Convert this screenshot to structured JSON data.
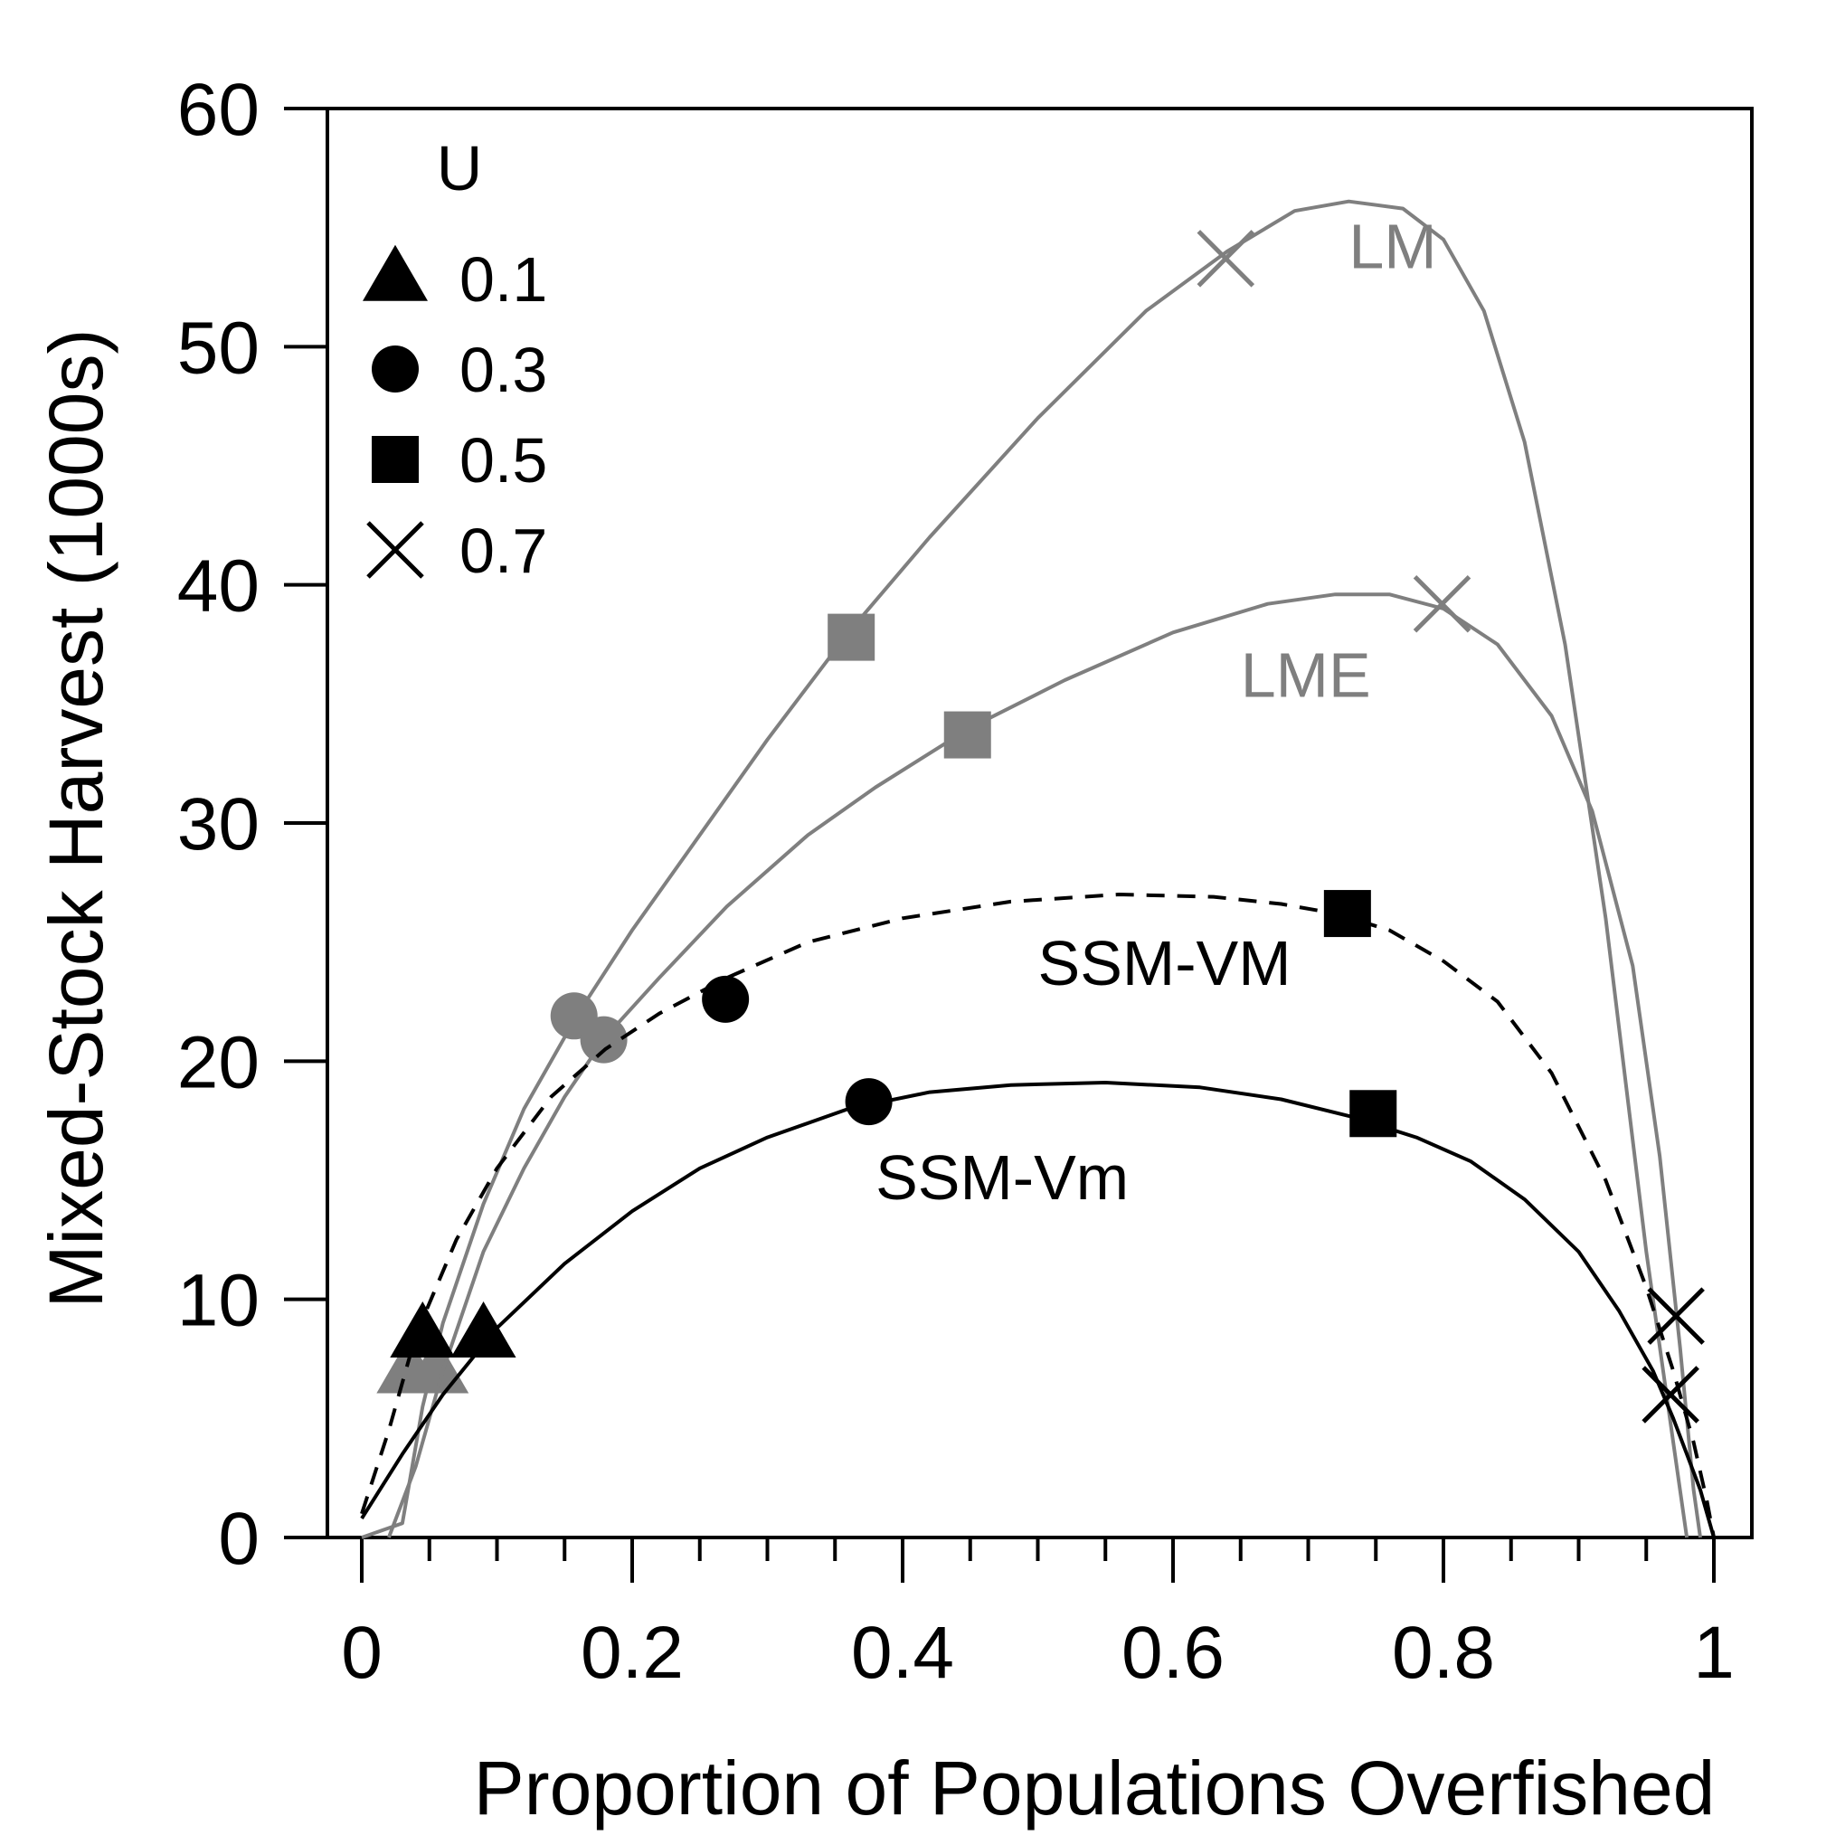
{
  "chart_data": {
    "type": "line",
    "title": "",
    "xlabel": "Proportion of Populations Overfished",
    "ylabel": "Mixed-Stock Harvest (1000s)",
    "xlim": [
      -0.04,
      1.02
    ],
    "ylim": [
      0,
      60
    ],
    "x_ticks": [
      0,
      0.2,
      0.4,
      0.6,
      0.8,
      1
    ],
    "x_tick_labels": [
      "0",
      "0.2",
      "0.4",
      "0.6",
      "0.8",
      "1"
    ],
    "x_minor_tick_step": 0.05,
    "y_ticks": [
      0,
      10,
      20,
      30,
      40,
      50,
      60
    ],
    "y_tick_labels": [
      "0",
      "10",
      "20",
      "30",
      "40",
      "50",
      "60"
    ],
    "grid": false,
    "legend": {
      "title": "U",
      "placement": "top-left",
      "entries": [
        {
          "marker": "triangle",
          "label": "0.1"
        },
        {
          "marker": "circle",
          "label": "0.3"
        },
        {
          "marker": "square",
          "label": "0.5"
        },
        {
          "marker": "cross",
          "label": "0.7"
        }
      ]
    },
    "series": [
      {
        "name": "LM",
        "color": "#7f7f7f",
        "dash": false,
        "x": [
          0,
          0.03,
          0.045,
          0.06,
          0.09,
          0.12,
          0.16,
          0.2,
          0.25,
          0.3,
          0.36,
          0.42,
          0.5,
          0.58,
          0.64,
          0.69,
          0.73,
          0.77,
          0.8,
          0.83,
          0.86,
          0.89,
          0.92,
          0.95,
          0.97,
          0.98
        ],
        "y": [
          0,
          0.6,
          5.5,
          9,
          14,
          18,
          22,
          25.5,
          29.5,
          33.5,
          38,
          42,
          47,
          51.5,
          54,
          55.7,
          56.1,
          55.8,
          54.5,
          51.5,
          46,
          37.5,
          26,
          12,
          4,
          0
        ],
        "markers": [
          {
            "marker": "triangle",
            "x": 0.055,
            "y": 7
          },
          {
            "marker": "circle",
            "x": 0.157,
            "y": 21.9
          },
          {
            "marker": "square",
            "x": 0.362,
            "y": 37.8
          },
          {
            "marker": "cross",
            "x": 0.639,
            "y": 53.7
          }
        ]
      },
      {
        "name": "LME",
        "color": "#7f7f7f",
        "dash": false,
        "x": [
          0.02,
          0.04,
          0.06,
          0.09,
          0.12,
          0.15,
          0.18,
          0.22,
          0.27,
          0.33,
          0.38,
          0.45,
          0.52,
          0.6,
          0.67,
          0.72,
          0.76,
          0.8,
          0.84,
          0.88,
          0.91,
          0.94,
          0.96,
          0.975,
          0.985,
          0.99
        ],
        "y": [
          0,
          3,
          7,
          12,
          15.5,
          18.5,
          21,
          23.5,
          26.5,
          29.5,
          31.5,
          34,
          36,
          38,
          39.2,
          39.6,
          39.6,
          39,
          37.5,
          34.5,
          30.5,
          24,
          16,
          8,
          2,
          0
        ],
        "markers": [
          {
            "marker": "triangle",
            "x": 0.035,
            "y": 7
          },
          {
            "marker": "circle",
            "x": 0.179,
            "y": 20.9
          },
          {
            "marker": "square",
            "x": 0.448,
            "y": 33.7
          },
          {
            "marker": "cross",
            "x": 0.799,
            "y": 39.2
          }
        ]
      },
      {
        "name": "SSM-VM",
        "color": "#000000",
        "dash": true,
        "x": [
          0,
          0.02,
          0.04,
          0.07,
          0.1,
          0.14,
          0.18,
          0.22,
          0.27,
          0.33,
          0.4,
          0.48,
          0.56,
          0.63,
          0.68,
          0.72,
          0.76,
          0.8,
          0.84,
          0.88,
          0.92,
          0.95,
          0.97,
          0.985,
          0.995,
          1
        ],
        "y": [
          1,
          4.5,
          8.5,
          12.5,
          15.5,
          18.5,
          20.5,
          22,
          23.5,
          25,
          26,
          26.7,
          27,
          26.9,
          26.6,
          26.2,
          25.5,
          24.2,
          22.5,
          19.5,
          15,
          10.5,
          7,
          4,
          1.5,
          0
        ],
        "markers": [
          {
            "marker": "triangle",
            "x": 0.045,
            "y": 8.5
          },
          {
            "marker": "circle",
            "x": 0.269,
            "y": 22.6
          },
          {
            "marker": "square",
            "x": 0.729,
            "y": 26.2
          },
          {
            "marker": "cross",
            "x": 0.972,
            "y": 9.3
          }
        ]
      },
      {
        "name": "SSM-Vm",
        "color": "#000000",
        "dash": false,
        "x": [
          0,
          0.03,
          0.06,
          0.1,
          0.15,
          0.2,
          0.25,
          0.3,
          0.36,
          0.42,
          0.48,
          0.55,
          0.62,
          0.68,
          0.73,
          0.78,
          0.82,
          0.86,
          0.9,
          0.93,
          0.955,
          0.97,
          0.98,
          0.99,
          0.995,
          1
        ],
        "y": [
          0.8,
          3.5,
          6,
          8.8,
          11.5,
          13.7,
          15.5,
          16.8,
          18,
          18.7,
          19,
          19.1,
          18.9,
          18.4,
          17.7,
          16.8,
          15.8,
          14.2,
          12,
          9.5,
          7,
          5,
          3.5,
          2,
          1,
          0
        ],
        "markers": [
          {
            "marker": "triangle",
            "x": 0.09,
            "y": 8.5
          },
          {
            "marker": "circle",
            "x": 0.375,
            "y": 18.3
          },
          {
            "marker": "square",
            "x": 0.748,
            "y": 17.8
          },
          {
            "marker": "cross",
            "x": 0.968,
            "y": 6
          }
        ]
      }
    ],
    "annotations": [
      {
        "text": "LM",
        "x": 0.73,
        "y": 53.3,
        "color": "#7f7f7f"
      },
      {
        "text": "LME",
        "x": 0.65,
        "y": 35.3,
        "color": "#7f7f7f"
      },
      {
        "text": "SSM-VM",
        "x": 0.5,
        "y": 23.2,
        "color": "#000000"
      },
      {
        "text": "SSM-Vm",
        "x": 0.38,
        "y": 14.2,
        "color": "#000000"
      }
    ]
  }
}
